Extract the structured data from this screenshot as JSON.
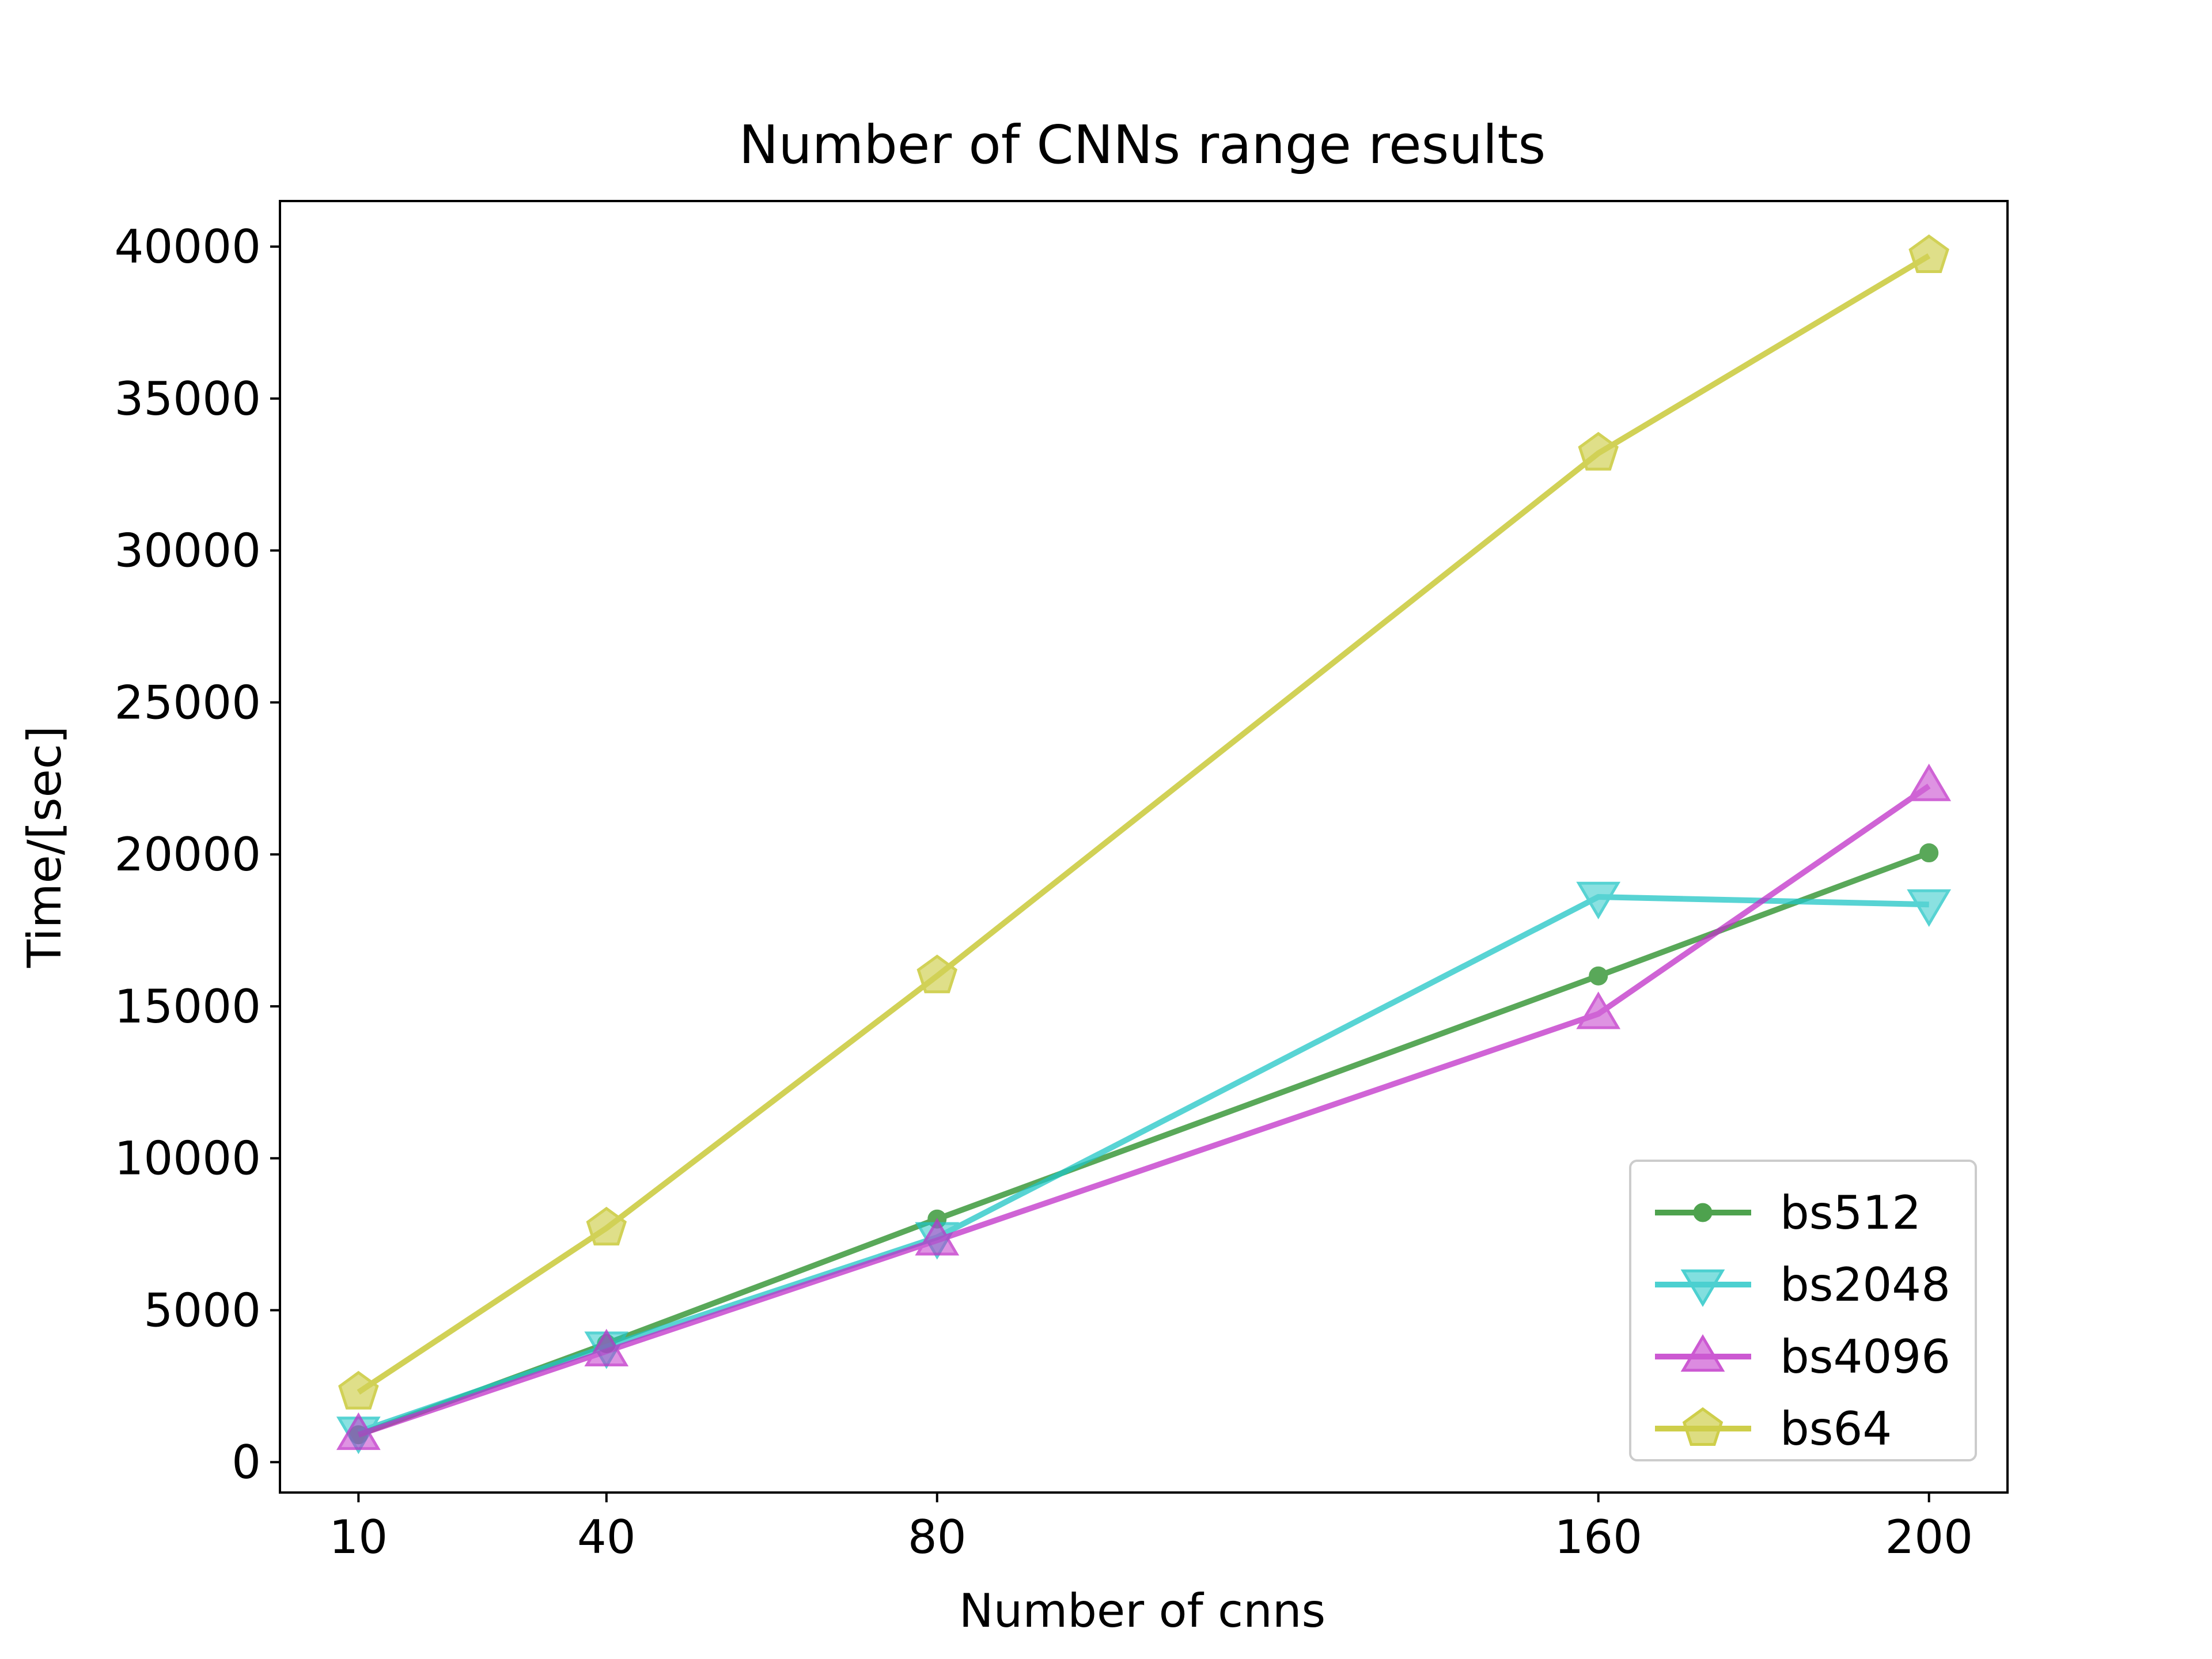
{
  "chart_data": {
    "type": "line",
    "title": "Number of CNNs range results",
    "xlabel": "Number of cnns",
    "ylabel": "Time/[sec]",
    "x": [
      10,
      40,
      80,
      160,
      200
    ],
    "x_ticks": [
      "10",
      "40",
      "80",
      "160",
      "200"
    ],
    "y_ticks": [
      0,
      5000,
      10000,
      15000,
      20000,
      25000,
      30000,
      35000,
      40000
    ],
    "xlim": [
      0.5,
      209.5
    ],
    "ylim": [
      -1000,
      41500
    ],
    "grid": false,
    "legend_position": "lower right",
    "series": [
      {
        "name": "bs512",
        "color": "#228b22",
        "marker": "circle",
        "values": [
          900,
          3900,
          8000,
          16000,
          20050
        ]
      },
      {
        "name": "bs2048",
        "color": "#20c5c5",
        "marker": "triangle-down",
        "values": [
          1000,
          3800,
          7400,
          18600,
          18350
        ]
      },
      {
        "name": "bs4096",
        "color": "#c030c8",
        "marker": "triangle-up",
        "values": [
          900,
          3650,
          7300,
          14750,
          22250
        ]
      },
      {
        "name": "bs64",
        "color": "#c2c21e",
        "marker": "pentagon",
        "values": [
          2300,
          7700,
          16000,
          33200,
          39700
        ]
      }
    ]
  }
}
